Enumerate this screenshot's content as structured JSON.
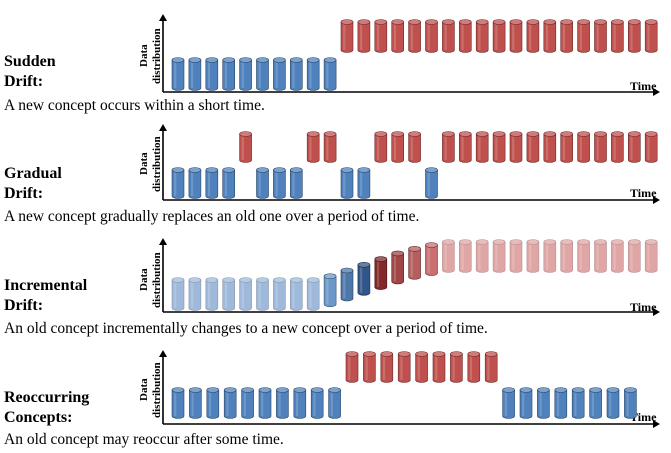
{
  "axes": {
    "y_label": "Data distribution",
    "x_label": "Time"
  },
  "colors": {
    "old_concept": "#4f81bd",
    "new_concept": "#c0504d"
  },
  "panels": [
    {
      "name_line1": "Sudden",
      "name_line2": "Drift:",
      "description": "A new concept occurs within a short time.",
      "sequence": [
        "old",
        "old",
        "old",
        "old",
        "old",
        "old",
        "old",
        "old",
        "old",
        "old",
        "new",
        "new",
        "new",
        "new",
        "new",
        "new",
        "new",
        "new",
        "new",
        "new",
        "new",
        "new",
        "new",
        "new",
        "new",
        "new",
        "new",
        "new",
        "new"
      ]
    },
    {
      "name_line1": "Gradual",
      "name_line2": "Drift:",
      "description": "A new concept gradually replaces an old one over a period of time.",
      "sequence": [
        "old",
        "old",
        "old",
        "old",
        "new",
        "old",
        "old",
        "old",
        "new",
        "new",
        "old",
        "old",
        "new",
        "new",
        "new",
        "old",
        "new",
        "new",
        "new",
        "new",
        "new",
        "new",
        "new",
        "new",
        "new",
        "new",
        "new",
        "new",
        "new"
      ]
    },
    {
      "name_line1": "Incremental",
      "name_line2": "Drift:",
      "description": "An old concept incrementally changes to a new concept over a period of time.",
      "sequence": [
        "old",
        "old",
        "old",
        "old",
        "old",
        "old",
        "old",
        "old",
        "old",
        "transition",
        "transition",
        "transition",
        "transition",
        "transition",
        "transition",
        "transition",
        "new",
        "new",
        "new",
        "new",
        "new",
        "new",
        "new",
        "new",
        "new",
        "new",
        "new",
        "new",
        "new"
      ],
      "transition_levels": [
        0,
        0,
        0,
        0,
        0,
        0,
        0,
        0,
        0,
        0.1,
        0.25,
        0.4,
        0.55,
        0.7,
        0.82,
        0.92,
        1,
        1,
        1,
        1,
        1,
        1,
        1,
        1,
        1,
        1,
        1,
        1,
        1
      ]
    },
    {
      "name_line1": "Reoccurring",
      "name_line2": "Concepts:",
      "description": "An old concept may reoccur after some time.",
      "sequence": [
        "old",
        "old",
        "old",
        "old",
        "old",
        "old",
        "old",
        "old",
        "old",
        "old",
        "new",
        "new",
        "new",
        "new",
        "new",
        "new",
        "new",
        "new",
        "new",
        "old",
        "old",
        "old",
        "old",
        "old",
        "old",
        "old",
        "old"
      ]
    }
  ]
}
